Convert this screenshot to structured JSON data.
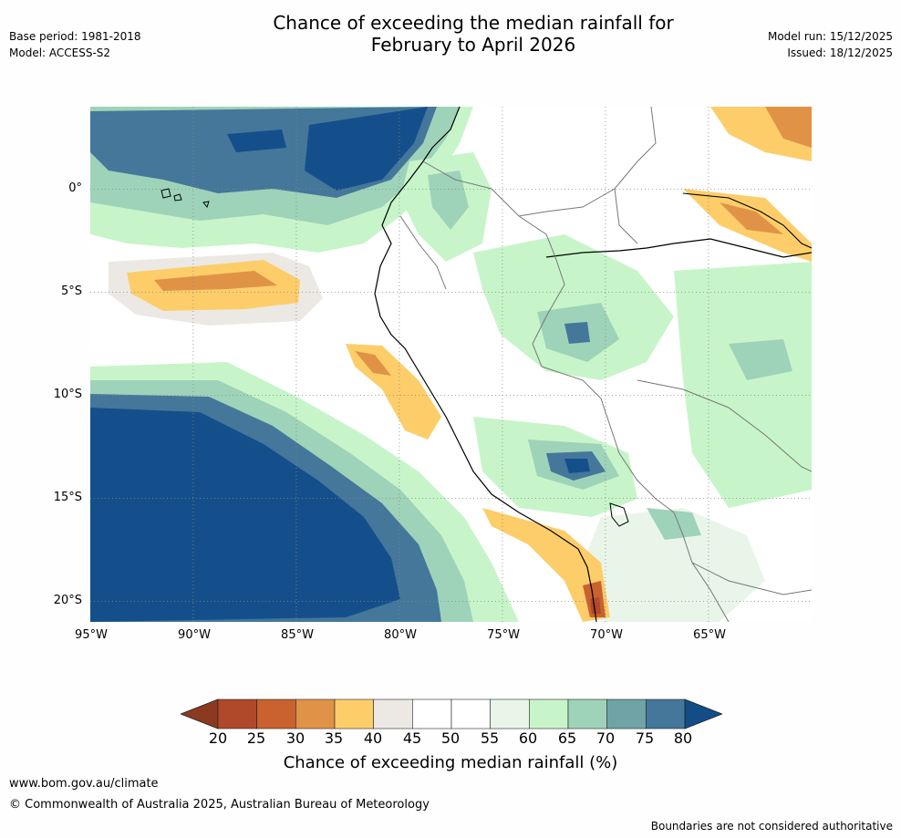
{
  "title_line1": "Chance of exceeding the median rainfall for",
  "title_line2": "February to April 2026",
  "left_meta": {
    "base_period": "Base period: 1981-2018",
    "model": "Model: ACCESS-S2"
  },
  "right_meta": {
    "model_run": "Model run: 15/12/2025",
    "issued": "Issued: 18/12/2025"
  },
  "map": {
    "lat_labels": [
      "0°",
      "5°S",
      "10°S",
      "15°S",
      "20°S"
    ],
    "lat_values": [
      0,
      -5,
      -10,
      -15,
      -20
    ],
    "lon_labels": [
      "95°W",
      "90°W",
      "85°W",
      "80°W",
      "75°W",
      "70°W",
      "65°W"
    ],
    "lon_values": [
      -95,
      -90,
      -85,
      -80,
      -75,
      -70,
      -65
    ],
    "extent": {
      "lon_min": -95,
      "lon_max": -60,
      "lat_min": -21,
      "lat_max": 4
    }
  },
  "legend": {
    "ticks": [
      "20",
      "25",
      "30",
      "35",
      "40",
      "45",
      "50",
      "55",
      "60",
      "65",
      "70",
      "75",
      "80"
    ],
    "colors": [
      "#8b3a1f",
      "#b0482a",
      "#c9622e",
      "#e09346",
      "#fdcd6a",
      "#ece9e4",
      "#ffffff",
      "#ffffff",
      "#eaf5ea",
      "#c7f5c9",
      "#9ed3b9",
      "#6fa3a6",
      "#44779a",
      "#154f8b",
      "#124d86"
    ],
    "label": "Chance of exceeding median rainfall (%)"
  },
  "footer": {
    "url": "www.bom.gov.au/climate",
    "copyright": "© Commonwealth of Australia 2025, Australian Bureau of Meteorology",
    "note": "Boundaries are not considered authoritative"
  }
}
